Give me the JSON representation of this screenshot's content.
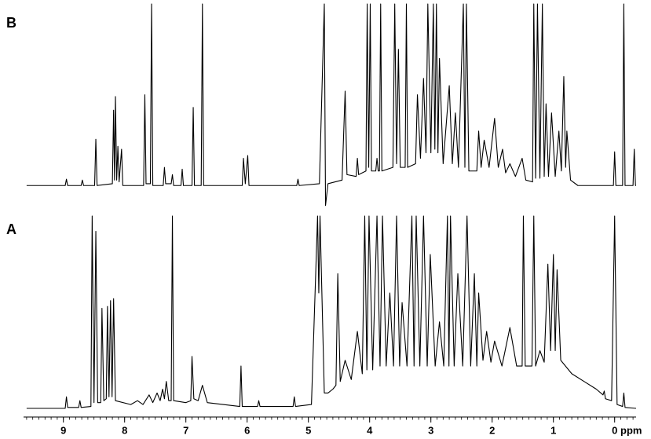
{
  "chart_data": [
    {
      "type": "line",
      "title": "B",
      "color": "#000000",
      "xlim": [
        9.65,
        -0.35
      ],
      "ylim": [
        -12,
        100
      ],
      "x": [
        9.6,
        8.97,
        8.95,
        8.93,
        8.71,
        8.69,
        8.67,
        8.49,
        8.47,
        8.45,
        8.2,
        8.18,
        8.165,
        8.15,
        8.13,
        8.11,
        8.09,
        8.05,
        8.03,
        7.69,
        7.67,
        7.65,
        7.58,
        7.56,
        7.54,
        7.37,
        7.35,
        7.33,
        7.24,
        7.22,
        7.2,
        7.08,
        7.06,
        7.04,
        6.9,
        6.88,
        6.86,
        6.75,
        6.73,
        6.71,
        6.08,
        6.06,
        6.03,
        5.99,
        5.97,
        5.19,
        5.17,
        5.15,
        4.82,
        4.74,
        4.72,
        4.68,
        4.45,
        4.4,
        4.37,
        4.22,
        4.2,
        4.18,
        4.06,
        4.04,
        4.015,
        3.99,
        3.97,
        3.9,
        3.88,
        3.86,
        3.84,
        3.82,
        3.8,
        3.62,
        3.59,
        3.56,
        3.53,
        3.5,
        3.42,
        3.4,
        3.38,
        3.25,
        3.22,
        3.17,
        3.12,
        3.08,
        3.05,
        3.0,
        2.96,
        2.935,
        2.91,
        2.885,
        2.86,
        2.8,
        2.7,
        2.65,
        2.6,
        2.55,
        2.47,
        2.445,
        2.42,
        2.38,
        2.25,
        2.22,
        2.18,
        2.13,
        2.05,
        1.96,
        1.9,
        1.83,
        1.78,
        1.71,
        1.62,
        1.51,
        1.45,
        1.34,
        1.32,
        1.29,
        1.26,
        1.22,
        1.18,
        1.15,
        1.12,
        1.08,
        1.03,
        0.97,
        0.91,
        0.87,
        0.83,
        0.8,
        0.78,
        0.72,
        0.6,
        0.02,
        0.0,
        -0.02,
        -0.13,
        -0.15,
        -0.17,
        -0.3,
        -0.32,
        -0.34,
        -0.35
      ],
      "values": [
        0,
        0,
        3.5,
        0,
        0,
        3,
        0,
        0,
        25.5,
        0,
        1,
        41.5,
        3,
        49,
        3,
        21.6,
        2,
        20,
        0,
        0,
        50,
        1,
        1,
        100,
        0,
        0,
        10,
        1,
        1,
        6,
        0,
        0,
        9,
        0,
        0,
        43,
        0,
        0,
        100,
        0,
        0,
        15,
        1,
        16.5,
        0,
        0,
        3.5,
        0,
        1,
        100,
        -11,
        1,
        3,
        52,
        6,
        5,
        15,
        6,
        8,
        100,
        10,
        100,
        8,
        8,
        15,
        8,
        8,
        100,
        8,
        10,
        100,
        12,
        75,
        10,
        10,
        100,
        10,
        12,
        50,
        15,
        59,
        18,
        100,
        18,
        100,
        20,
        100,
        18,
        70,
        12,
        55,
        12,
        40,
        10,
        100,
        10,
        100,
        8,
        8,
        30,
        10,
        25,
        10,
        37,
        10,
        20,
        7,
        12,
        5,
        15,
        3,
        2,
        100,
        4,
        100,
        4,
        100,
        5,
        45,
        5,
        40,
        5,
        30,
        8,
        60,
        10,
        30,
        3,
        0,
        0,
        18.6,
        0,
        0,
        100,
        0,
        0,
        20,
        0,
        0
      ]
    },
    {
      "type": "line",
      "title": "A",
      "color": "#000000",
      "xlim": [
        9.65,
        -0.35
      ],
      "ylim": [
        0,
        100
      ],
      "xlabel": "ppm",
      "xticks": [
        9,
        8,
        7,
        6,
        5,
        4,
        3,
        2,
        1,
        0
      ],
      "x": [
        9.6,
        8.97,
        8.95,
        8.93,
        8.75,
        8.73,
        8.71,
        8.55,
        8.53,
        8.5,
        8.47,
        8.44,
        8.39,
        8.37,
        8.34,
        8.3,
        8.28,
        8.255,
        8.23,
        8.205,
        8.18,
        8.15,
        7.9,
        7.79,
        7.7,
        7.6,
        7.54,
        7.47,
        7.42,
        7.38,
        7.35,
        7.32,
        7.28,
        7.24,
        7.22,
        7.2,
        7.0,
        6.92,
        6.9,
        6.87,
        6.8,
        6.73,
        6.65,
        6.12,
        6.1,
        6.08,
        5.83,
        5.81,
        5.79,
        5.25,
        5.23,
        5.21,
        4.95,
        4.85,
        4.83,
        4.81,
        4.74,
        4.68,
        4.6,
        4.55,
        4.52,
        4.48,
        4.4,
        4.3,
        4.2,
        4.12,
        4.08,
        4.045,
        4.01,
        3.95,
        3.88,
        3.83,
        3.79,
        3.73,
        3.67,
        3.61,
        3.56,
        3.51,
        3.47,
        3.39,
        3.31,
        3.275,
        3.24,
        3.18,
        3.12,
        3.06,
        3.01,
        2.93,
        2.86,
        2.79,
        2.73,
        2.705,
        2.68,
        2.62,
        2.56,
        2.48,
        2.41,
        2.35,
        2.29,
        2.25,
        2.22,
        2.15,
        2.09,
        2.02,
        1.96,
        1.84,
        1.71,
        1.6,
        1.51,
        1.49,
        1.46,
        1.35,
        1.32,
        1.29,
        1.22,
        1.15,
        1.09,
        1.045,
        1.0,
        0.97,
        0.94,
        0.88,
        0.7,
        0.5,
        0.3,
        0.19,
        0.17,
        0.15,
        0.05,
        0.0,
        -0.04,
        -0.13,
        -0.15,
        -0.17,
        -0.35
      ],
      "values": [
        0,
        0,
        6,
        0.5,
        0.5,
        4,
        0.5,
        1,
        100,
        3,
        92,
        3,
        3,
        52,
        4,
        5,
        53,
        6,
        56,
        6,
        57,
        4,
        2,
        4,
        2,
        7,
        3,
        8,
        4,
        10,
        5,
        14,
        4,
        4,
        100,
        4,
        3,
        4,
        27,
        5,
        4,
        12,
        3,
        1,
        22,
        1,
        1,
        4,
        1,
        1,
        6,
        1,
        2,
        100,
        60,
        100,
        8,
        8,
        10,
        12,
        70,
        14,
        25,
        15,
        40,
        18,
        100,
        20,
        100,
        20,
        100,
        22,
        100,
        22,
        60,
        22,
        100,
        22,
        55,
        22,
        100,
        22,
        100,
        22,
        100,
        22,
        80,
        22,
        45,
        22,
        100,
        22,
        100,
        22,
        70,
        22,
        100,
        22,
        70,
        22,
        60,
        25,
        40,
        24,
        35,
        22,
        42,
        22,
        22,
        100,
        22,
        22,
        100,
        22,
        30,
        24,
        75,
        30,
        80,
        30,
        72,
        25,
        18,
        14,
        10,
        7,
        9,
        5,
        4,
        100,
        2,
        1,
        8,
        0.5,
        0
      ]
    }
  ]
}
